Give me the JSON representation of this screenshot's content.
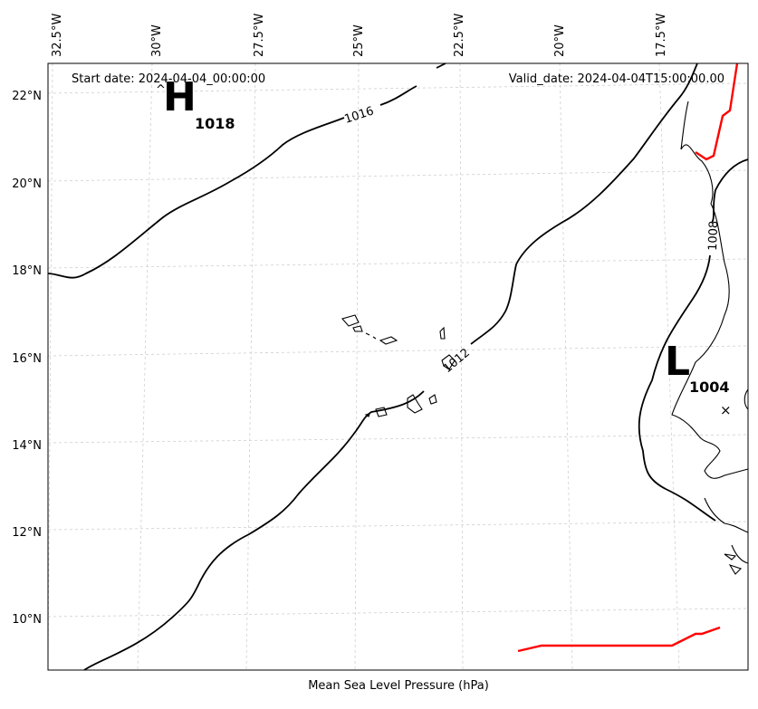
{
  "header": {
    "start_date": "Start date: 2024-04-04_00:00:00",
    "valid_date": "Valid_date: 2024-04-04T15:00:00.00"
  },
  "caption": "Mean Sea Level Pressure (hPa)",
  "longitude_labels": [
    "32.5°W",
    "30°W",
    "27.5°W",
    "25°W",
    "22.5°W",
    "20°W",
    "17.5°W"
  ],
  "latitude_labels": [
    "22°N",
    "20°N",
    "18°N",
    "16°N",
    "14°N",
    "12°N",
    "10°N"
  ],
  "high_center": {
    "letter": "H",
    "value": "1018"
  },
  "low_center": {
    "letter": "L",
    "value": "1004",
    "marker": "×"
  },
  "isobar_labels": [
    "1016",
    "1012",
    "1008"
  ],
  "colors": {
    "isobar": "#000000",
    "coastline": "#000000",
    "highlight_line": "#ff0000",
    "gridline": "#cfcfcf"
  }
}
